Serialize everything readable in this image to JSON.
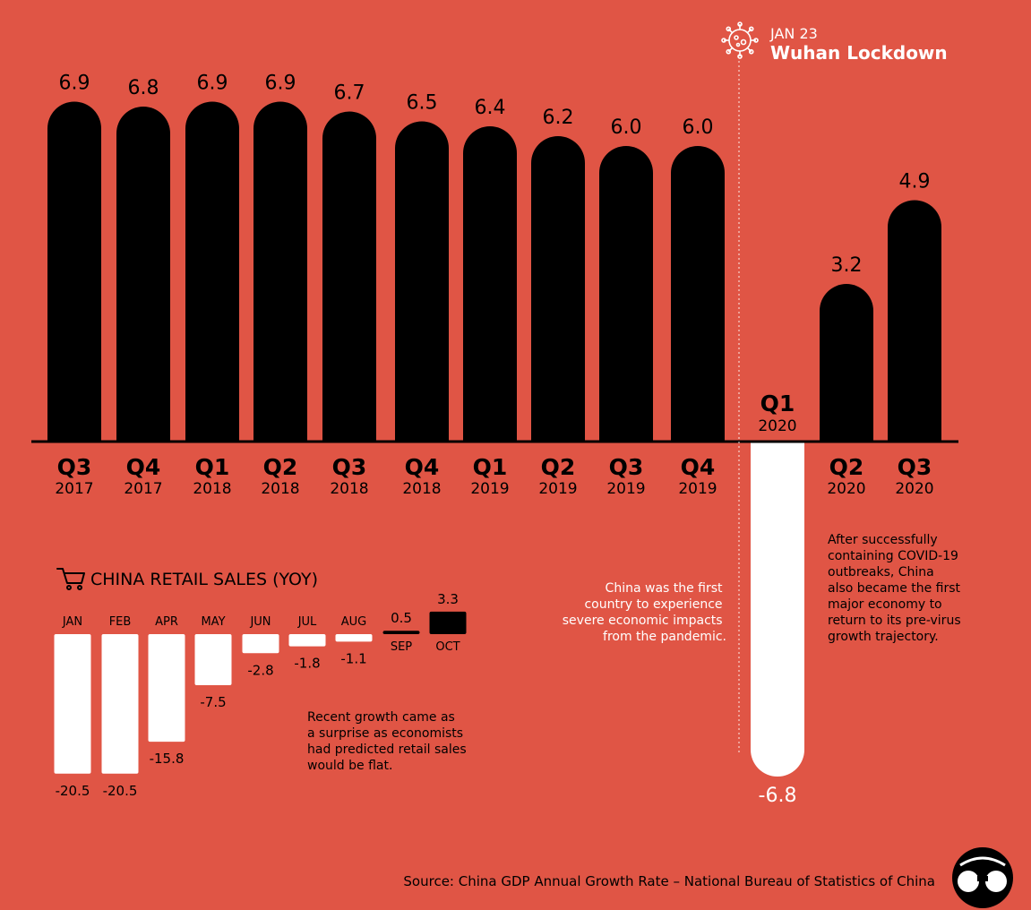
{
  "colors": {
    "background": "#e05545",
    "positive": "#000000",
    "negative": "#ffffff",
    "label_on_bg": "#000000",
    "label_on_bar": "#ffffff"
  },
  "annotations": {
    "lockdown_date": "JAN 23",
    "lockdown_title": "Wuhan Lockdown",
    "first_impact": [
      "China was the first",
      "country to experience",
      "severe economic impacts",
      "from the pandemic."
    ],
    "recovery": [
      "After successfully",
      "containing COVID-19",
      "outbreaks, China",
      "also became the first",
      "major economy to",
      "return to its pre-virus",
      "growth trajectory."
    ],
    "retail_note": [
      "Recent growth came as",
      "a surprise as economists",
      "had predicted retail sales",
      "would be flat."
    ]
  },
  "retail_title": "CHINA RETAIL SALES (YOY)",
  "source": "Source: China GDP Annual Growth Rate – National Bureau of Statistics of China",
  "icons": {
    "virus": "virus-icon",
    "cart": "shopping-cart-icon",
    "logo": "binoculars-logo-icon"
  },
  "chart_data": [
    {
      "type": "bar",
      "categories": [
        [
          "Q3",
          "2017"
        ],
        [
          "Q4",
          "2017"
        ],
        [
          "Q1",
          "2018"
        ],
        [
          "Q2",
          "2018"
        ],
        [
          "Q3",
          "2018"
        ],
        [
          "Q4",
          "2018"
        ],
        [
          "Q1",
          "2019"
        ],
        [
          "Q2",
          "2019"
        ],
        [
          "Q3",
          "2019"
        ],
        [
          "Q4",
          "2019"
        ],
        [
          "Q1",
          "2020"
        ],
        [
          "Q2",
          "2020"
        ],
        [
          "Q3",
          "2020"
        ]
      ],
      "values": [
        6.9,
        6.8,
        6.9,
        6.9,
        6.7,
        6.5,
        6.4,
        6.2,
        6.0,
        6.0,
        -6.8,
        3.2,
        4.9
      ],
      "labels": [
        "6.9",
        "6.8",
        "6.9",
        "6.9",
        "6.7",
        "6.5",
        "6.4",
        "6.2",
        "6.0",
        "6.0",
        "-6.8",
        "3.2",
        "4.9"
      ],
      "ylim": [
        -6.8,
        6.9
      ],
      "title": "",
      "xlabel": "",
      "ylabel": ""
    },
    {
      "type": "bar",
      "title": "CHINA RETAIL SALES (YOY)",
      "categories": [
        "JAN",
        "FEB",
        "APR",
        "MAY",
        "JUN",
        "JUL",
        "AUG",
        "SEP",
        "OCT"
      ],
      "values": [
        -20.5,
        -20.5,
        -15.8,
        -7.5,
        -2.8,
        -1.8,
        -1.1,
        0.5,
        3.3
      ],
      "labels": [
        "-20.5",
        "-20.5",
        "-15.8",
        "-7.5",
        "-2.8",
        "-1.8",
        "-1.1",
        "0.5",
        "3.3"
      ],
      "xlabel": "",
      "ylabel": ""
    }
  ]
}
